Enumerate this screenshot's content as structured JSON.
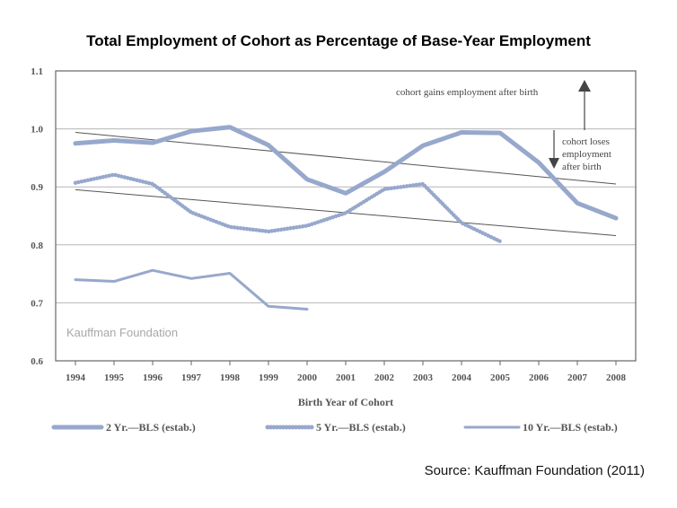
{
  "title": "Total Employment of Cohort as Percentage of Base-Year Employment",
  "source": "Source: Kauffman Foundation (2011)",
  "watermark": "Kauffman Foundation",
  "annotations": {
    "gain": "cohort gains employment after birth",
    "lose": [
      "cohort loses",
      "employment",
      "after birth"
    ]
  },
  "colors": {
    "series": "#97a8cc",
    "axis": "#666666",
    "trend": "#555555",
    "text": "#555555",
    "watermark": "#a8a8a8"
  },
  "chart_data": {
    "type": "line",
    "xlabel": "Birth Year of Cohort",
    "ylabel": "",
    "xlim": [
      1994,
      2008
    ],
    "ylim": [
      0.6,
      1.1
    ],
    "x_ticks": [
      1994,
      1995,
      1996,
      1997,
      1998,
      1999,
      2000,
      2001,
      2002,
      2003,
      2004,
      2005,
      2006,
      2007,
      2008
    ],
    "y_ticks": [
      "0.6",
      "0.7",
      "0.8",
      "0.9",
      "1.0",
      "1.1"
    ],
    "grid": "horizontal",
    "legend": "bottom",
    "series": [
      {
        "name": "2 Yr.—BLS (estab.)",
        "style": "solid-thick",
        "x": [
          1994,
          1995,
          1996,
          1997,
          1998,
          1999,
          2000,
          2001,
          2002,
          2003,
          2004,
          2005,
          2006,
          2007,
          2008
        ],
        "values": [
          0.975,
          0.98,
          0.976,
          0.996,
          1.003,
          0.972,
          0.913,
          0.889,
          0.926,
          0.971,
          0.994,
          0.993,
          0.942,
          0.872,
          0.846
        ]
      },
      {
        "name": "5 Yr.—BLS (estab.)",
        "style": "dotted",
        "x": [
          1994,
          1995,
          1996,
          1997,
          1998,
          1999,
          2000,
          2001,
          2002,
          2003,
          2004,
          2005
        ],
        "values": [
          0.907,
          0.921,
          0.905,
          0.856,
          0.831,
          0.823,
          0.833,
          0.855,
          0.896,
          0.905,
          0.838,
          0.806
        ]
      },
      {
        "name": "10 Yr.—BLS (estab.)",
        "style": "solid-thin",
        "x": [
          1994,
          1995,
          1996,
          1997,
          1998,
          1999,
          2000
        ],
        "values": [
          0.74,
          0.737,
          0.756,
          0.742,
          0.751,
          0.694,
          0.689
        ]
      }
    ],
    "trendlines": [
      {
        "x": [
          1994,
          2008
        ],
        "values": [
          0.994,
          0.905
        ]
      },
      {
        "x": [
          1994,
          2008
        ],
        "values": [
          0.895,
          0.816
        ]
      }
    ]
  }
}
